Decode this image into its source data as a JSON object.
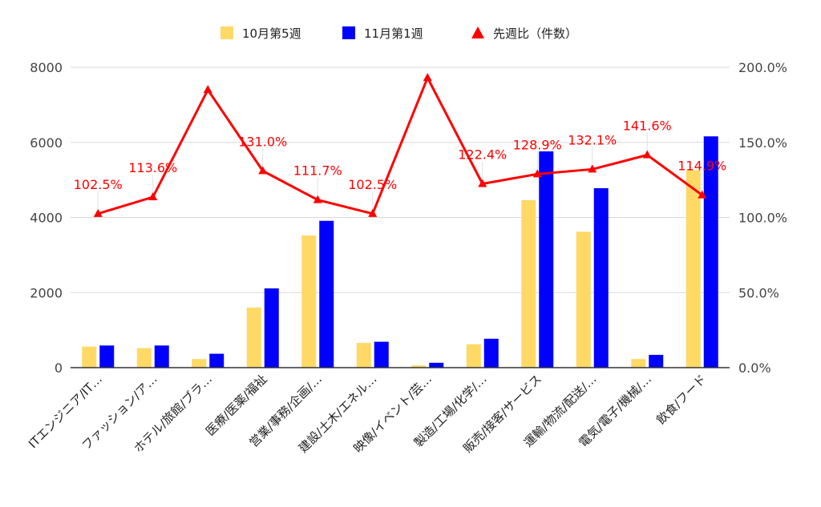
{
  "chart_data": {
    "type": "bar",
    "combo": "bar+line",
    "categories": [
      "ITエンジニア/IT…",
      "ファッション/ア…",
      "ホテル/旅館/ブラ…",
      "医療/医薬/福祉",
      "営業/事務/企画/…",
      "建設/土木/エネル…",
      "映像/イベント/芸…",
      "製造/工場/化学/…",
      "販売/接客/サービス",
      "運輸/物流/配送/…",
      "電気/電子/機械/…",
      "飲食/フード"
    ],
    "series": [
      {
        "name": "10月第5週",
        "type": "bar",
        "axis": "left",
        "color": "#ffd966",
        "values": [
          560,
          520,
          230,
          1600,
          3520,
          660,
          60,
          620,
          4460,
          3620,
          230,
          5260
        ]
      },
      {
        "name": "11月第1週",
        "type": "bar",
        "axis": "left",
        "color": "#0000ff",
        "values": [
          590,
          590,
          370,
          2110,
          3910,
          690,
          130,
          770,
          5760,
          4780,
          340,
          6160
        ]
      },
      {
        "name": "先週比（件数）",
        "type": "line",
        "axis": "right",
        "color": "#ff0000",
        "values": [
          102.5,
          113.6,
          185.0,
          131.0,
          111.7,
          102.5,
          193.0,
          122.4,
          128.9,
          132.1,
          141.6,
          114.9
        ],
        "labels": [
          "102.5%",
          "113.6%",
          "",
          "131.0%",
          "111.7%",
          "102.5%",
          "",
          "122.4%",
          "128.9%",
          "132.1%",
          "141.6%",
          "114.9%"
        ]
      }
    ],
    "y_left": {
      "ticks": [
        "0",
        "2000",
        "4000",
        "6000",
        "8000"
      ],
      "range": [
        0,
        8000
      ]
    },
    "y_right": {
      "ticks": [
        "0.0%",
        "50.0%",
        "100.0%",
        "150.0%",
        "200.0%"
      ],
      "range": [
        0,
        200
      ]
    },
    "grid": true,
    "legend_position": "top"
  }
}
